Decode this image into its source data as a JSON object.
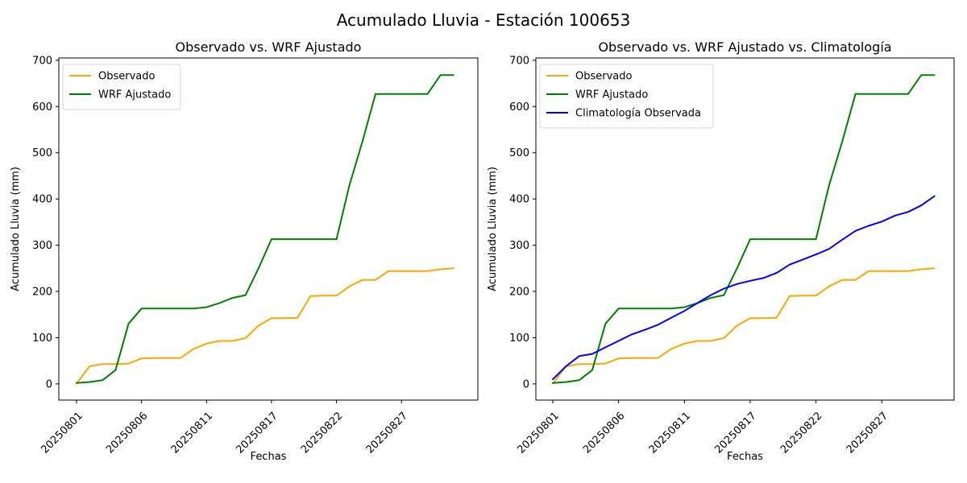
{
  "figure": {
    "title": "Acumulado Lluvia - Estación 100653",
    "background": "#ffffff",
    "text_color": "#000000"
  },
  "chart_data": [
    {
      "type": "line",
      "title": "Observado vs. WRF Ajustado",
      "xlabel": "Fechas",
      "ylabel": "Acumulado Lluvia (mm)",
      "ylim": [
        -35,
        705
      ],
      "yticks": [
        0,
        100,
        200,
        300,
        400,
        500,
        600,
        700
      ],
      "xtick_indices": [
        0,
        5,
        10,
        15,
        20,
        25
      ],
      "xtick_labels": [
        "20250801",
        "20250806",
        "20250811",
        "20250817",
        "20250822",
        "20250827"
      ],
      "x_rotation_deg": 45,
      "grid": false,
      "legend_position": "upper-left",
      "x_dates": [
        "20250801",
        "20250802",
        "20250803",
        "20250804",
        "20250805",
        "20250806",
        "20250807",
        "20250808",
        "20250809",
        "20250810",
        "20250811",
        "20250813",
        "20250814",
        "20250815",
        "20250816",
        "20250817",
        "20250818",
        "20250819",
        "20250820",
        "20250821",
        "20250822",
        "20250823",
        "20250824",
        "20250825",
        "20250826",
        "20250827",
        "20250828",
        "20250829",
        "20250830",
        "20250831"
      ],
      "series": [
        {
          "name": "Observado",
          "color": "#FFA500",
          "values": [
            1,
            38,
            43,
            43,
            44,
            55,
            56,
            56,
            56,
            76,
            87,
            93,
            93,
            99,
            126,
            142,
            142,
            143,
            190,
            191,
            191,
            211,
            225,
            225,
            244,
            244,
            244,
            244,
            248,
            250
          ]
        },
        {
          "name": "WRF Ajustado",
          "color": "#008000",
          "values": [
            2,
            4,
            8,
            30,
            130,
            163,
            163,
            163,
            163,
            163,
            166,
            175,
            186,
            192,
            250,
            313,
            313,
            313,
            313,
            313,
            313,
            430,
            525,
            627,
            627,
            627,
            627,
            627,
            668,
            668
          ]
        }
      ]
    },
    {
      "type": "line",
      "title": "Observado vs. WRF Ajustado vs. Climatología",
      "xlabel": "Fechas",
      "ylabel": "Acumulado Lluvia (mm)",
      "ylim": [
        -35,
        705
      ],
      "yticks": [
        0,
        100,
        200,
        300,
        400,
        500,
        600,
        700
      ],
      "xtick_indices": [
        0,
        5,
        10,
        15,
        20,
        25
      ],
      "xtick_labels": [
        "20250801",
        "20250806",
        "20250811",
        "20250817",
        "20250822",
        "20250827"
      ],
      "x_rotation_deg": 45,
      "grid": false,
      "legend_position": "upper-left",
      "x_dates": [
        "20250801",
        "20250802",
        "20250803",
        "20250804",
        "20250805",
        "20250806",
        "20250807",
        "20250808",
        "20250809",
        "20250810",
        "20250811",
        "20250813",
        "20250814",
        "20250815",
        "20250816",
        "20250817",
        "20250818",
        "20250819",
        "20250820",
        "20250821",
        "20250822",
        "20250823",
        "20250824",
        "20250825",
        "20250826",
        "20250827",
        "20250828",
        "20250829",
        "20250830",
        "20250831"
      ],
      "series": [
        {
          "name": "Observado",
          "color": "#FFA500",
          "values": [
            1,
            38,
            43,
            43,
            44,
            55,
            56,
            56,
            56,
            76,
            87,
            93,
            93,
            99,
            126,
            142,
            142,
            143,
            190,
            191,
            191,
            211,
            225,
            225,
            244,
            244,
            244,
            244,
            248,
            250
          ]
        },
        {
          "name": "WRF Ajustado",
          "color": "#008000",
          "values": [
            2,
            4,
            8,
            30,
            130,
            163,
            163,
            163,
            163,
            163,
            166,
            175,
            186,
            192,
            250,
            313,
            313,
            313,
            313,
            313,
            313,
            430,
            525,
            627,
            627,
            627,
            627,
            627,
            668,
            668
          ]
        },
        {
          "name": "Climatología Observada",
          "color": "#0000FF",
          "values": [
            10,
            38,
            60,
            65,
            79,
            93,
            107,
            117,
            128,
            143,
            158,
            175,
            192,
            206,
            216,
            223,
            229,
            240,
            258,
            269,
            280,
            292,
            312,
            331,
            342,
            351,
            364,
            372,
            386,
            406
          ]
        }
      ]
    }
  ]
}
